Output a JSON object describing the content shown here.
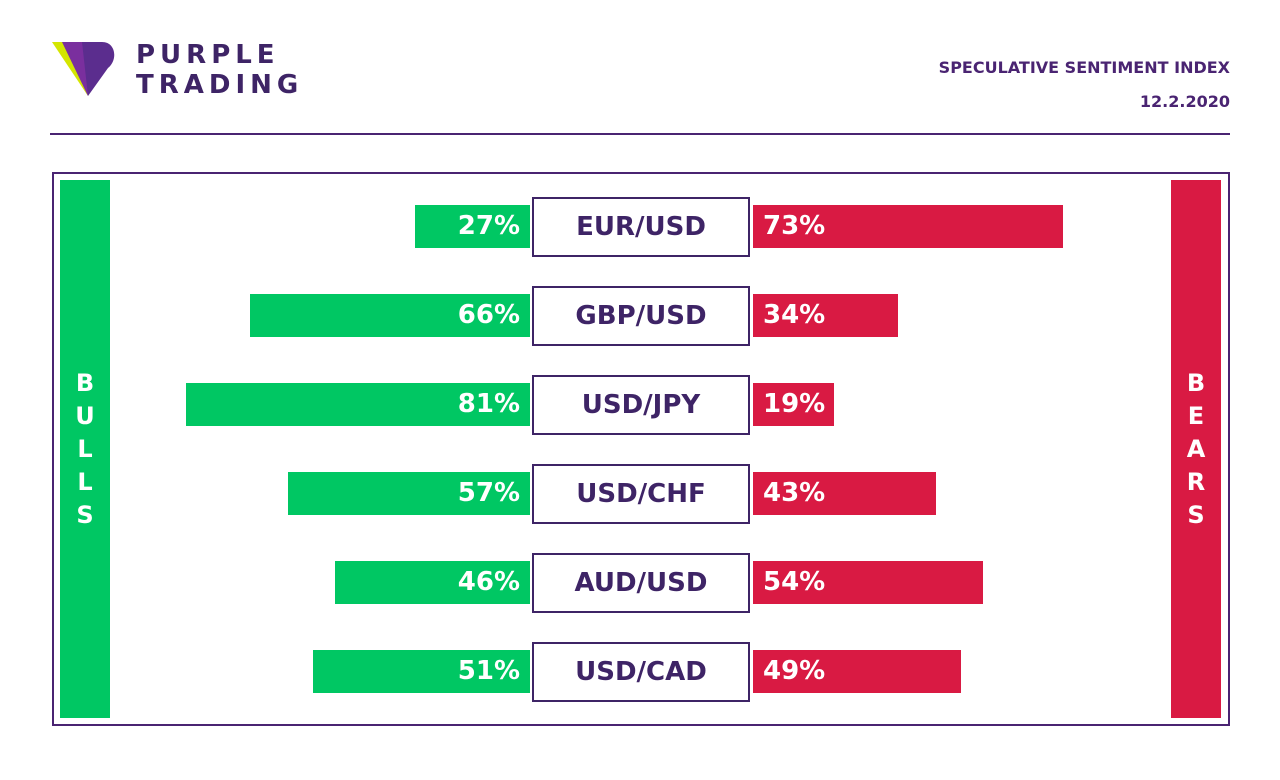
{
  "brand": {
    "line1": "PURPLE",
    "line2": "TRADING",
    "logo_icon": "purple-trading-logo-icon"
  },
  "header": {
    "title": "SPECULATIVE SENTIMENT INDEX",
    "date": "12.2.2020"
  },
  "colors": {
    "bulls": "#00c763",
    "bears": "#d91a43",
    "brand": "#4a2472"
  },
  "side_labels": {
    "bulls": "B\nU\nL\nL\nS",
    "bears": "B\nE\nA\nR\nS"
  },
  "chart_data": {
    "type": "bar",
    "title": "SPECULATIVE SENTIMENT INDEX",
    "categories": [
      "EUR/USD",
      "GBP/USD",
      "USD/JPY",
      "USD/CHF",
      "AUD/USD",
      "USD/CAD"
    ],
    "series": [
      {
        "name": "BULLS",
        "values": [
          27,
          66,
          81,
          57,
          46,
          51
        ],
        "labels": [
          "27%",
          "66%",
          "81%",
          "57%",
          "46%",
          "51%"
        ]
      },
      {
        "name": "BEARS",
        "values": [
          73,
          34,
          19,
          43,
          54,
          49
        ],
        "labels": [
          "73%",
          "34%",
          "19%",
          "43%",
          "54%",
          "49%"
        ]
      }
    ],
    "unit": "%",
    "xlim": [
      0,
      100
    ]
  }
}
